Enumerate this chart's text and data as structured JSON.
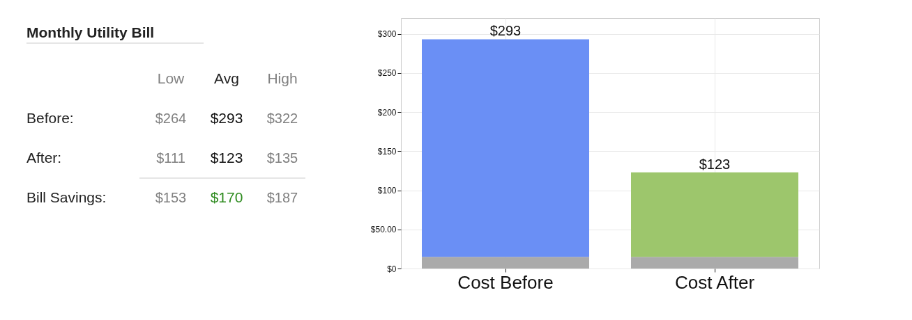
{
  "chart_data": [
    {
      "type": "other",
      "title": "Monthly Utility Bill",
      "categories": [
        "Low",
        "Avg",
        "High"
      ],
      "y_categories": [
        "Before:",
        "After:",
        "Bill Savings:"
      ],
      "cell_labels": [
        [
          "$264",
          "$293",
          "$322"
        ],
        [
          "$111",
          "$123",
          "$135"
        ],
        [
          "$153",
          "$170",
          "$187"
        ]
      ]
    },
    {
      "type": "bar",
      "stacked": true,
      "categories": [
        "Cost Before",
        "Cost After"
      ],
      "series": [
        {
          "color": "#aaaaaa",
          "values": [
            15,
            15
          ]
        },
        {
          "colors": [
            "#6a8ff5",
            "#9dc66c"
          ],
          "values": [
            278,
            108
          ]
        }
      ],
      "totals": [
        "$293",
        "$123"
      ],
      "ylim": [
        0,
        320
      ],
      "yticks": [
        {
          "value": 0,
          "label": "$0"
        },
        {
          "value": 50,
          "label": "$50.00"
        },
        {
          "value": 100,
          "label": "$100"
        },
        {
          "value": 150,
          "label": "$150"
        },
        {
          "value": 200,
          "label": "$200"
        },
        {
          "value": 250,
          "label": "$250"
        },
        {
          "value": 300,
          "label": "$300"
        }
      ],
      "grid": true
    }
  ]
}
